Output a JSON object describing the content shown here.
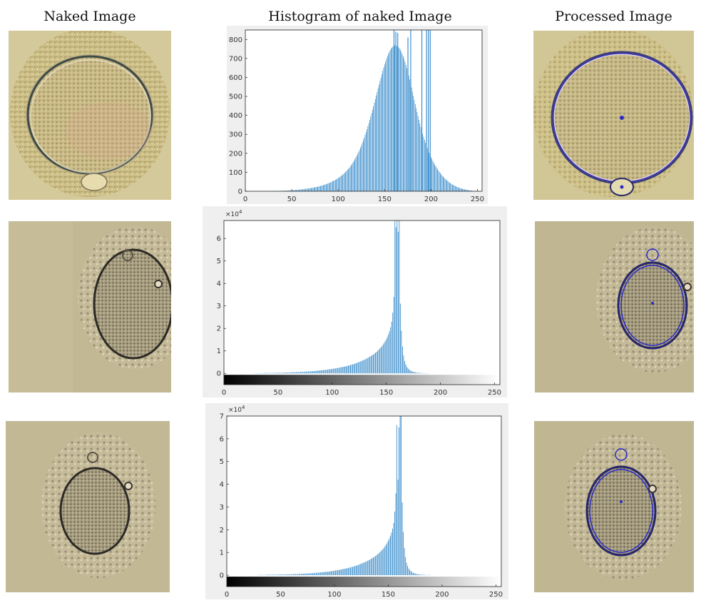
{
  "headers": {
    "naked": "Naked Image",
    "histogram": "Histogram of naked Image",
    "processed": "Processed Image"
  },
  "colors": {
    "bar": "#2f86c8",
    "plot_bg": "#ffffff",
    "panel_bg": "#efefef",
    "overlay": "#2a2ac8"
  },
  "chart_data": [
    {
      "type": "bar",
      "title": "",
      "xlabel": "",
      "ylabel": "",
      "xlim": [
        0,
        255
      ],
      "ylim": [
        0,
        850
      ],
      "exponent_label": "",
      "xticks": [
        "0",
        "50",
        "100",
        "150",
        "200",
        "250"
      ],
      "yticks": [
        "0",
        "100",
        "200",
        "300",
        "400",
        "500",
        "600",
        "700",
        "800"
      ],
      "colorbar": "grayscale 0-255",
      "values": [
        0,
        0,
        0,
        0,
        0,
        0,
        0,
        0,
        0,
        0,
        0,
        0,
        0,
        0,
        0,
        0,
        0,
        0,
        0,
        0,
        0,
        0,
        0,
        0,
        0,
        0,
        0,
        0,
        0,
        1,
        1,
        1,
        1,
        1,
        1,
        1,
        1,
        2,
        2,
        2,
        2,
        2,
        3,
        3,
        3,
        3,
        4,
        4,
        4,
        5,
        5,
        5,
        6,
        6,
        7,
        7,
        8,
        8,
        8,
        9,
        10,
        10,
        11,
        11,
        12,
        13,
        13,
        14,
        15,
        16,
        16,
        17,
        18,
        19,
        20,
        21,
        22,
        23,
        24,
        25,
        27,
        28,
        29,
        31,
        32,
        34,
        36,
        37,
        39,
        41,
        43,
        45,
        47,
        50,
        52,
        55,
        57,
        60,
        63,
        66,
        69,
        73,
        76,
        80,
        84,
        88,
        92,
        97,
        102,
        107,
        112,
        118,
        124,
        130,
        137,
        144,
        152,
        160,
        169,
        178,
        187,
        197,
        207,
        218,
        230,
        242,
        255,
        268,
        282,
        296,
        311,
        327,
        343,
        359,
        376,
        394,
        412,
        430,
        448,
        467,
        486,
        505,
        524,
        543,
        562,
        581,
        599,
        617,
        635,
        652,
        668,
        683,
        698,
        711,
        723,
        734,
        744,
        752,
        758,
        763,
        767,
        769,
        769,
        767,
        764,
        759,
        753,
        745,
        735,
        724,
        712,
        698,
        682,
        666,
        648,
        629,
        610,
        589,
        568,
        547,
        525,
        503,
        481,
        459,
        438,
        417,
        396,
        376,
        357,
        338,
        320,
        303,
        287,
        271,
        256,
        242,
        228,
        215,
        203,
        191,
        180,
        170,
        160,
        150,
        141,
        133,
        125,
        117,
        109,
        102,
        96,
        89,
        83,
        78,
        72,
        67,
        62,
        58,
        54,
        50,
        46,
        42,
        39,
        36,
        33,
        30,
        28,
        25,
        23,
        21,
        19,
        17,
        16,
        14,
        13,
        12,
        10,
        9,
        8,
        7,
        6,
        5,
        4,
        4,
        3,
        2,
        2,
        1,
        1,
        0,
        0,
        0
      ],
      "spikes": [
        [
          160,
          860
        ],
        [
          162,
          840
        ],
        [
          164,
          835
        ],
        [
          175,
          810
        ],
        [
          178,
          900
        ],
        [
          190,
          880
        ],
        [
          195,
          860
        ],
        [
          197,
          900
        ],
        [
          199,
          870
        ]
      ]
    },
    {
      "type": "bar",
      "title": "",
      "xlabel": "",
      "ylabel": "",
      "xlim": [
        0,
        255
      ],
      "ylim": [
        -0.5,
        6.8
      ],
      "exponent_label": "×10",
      "exponent_power": "4",
      "xticks": [
        "0",
        "50",
        "100",
        "150",
        "200",
        "250"
      ],
      "yticks": [
        "0",
        "1",
        "2",
        "3",
        "4",
        "5",
        "6"
      ],
      "colorbar": "grayscale 0-255",
      "values": [
        0,
        0,
        0,
        0,
        0,
        0,
        0,
        0,
        0,
        0,
        0,
        0,
        0,
        0,
        0,
        0,
        0,
        0,
        0,
        0,
        0,
        0,
        0,
        0,
        0,
        0,
        0,
        0,
        0,
        0.01,
        0.01,
        0.01,
        0.01,
        0.01,
        0.01,
        0.01,
        0.01,
        0.02,
        0.02,
        0.02,
        0.02,
        0.02,
        0.02,
        0.02,
        0.02,
        0.02,
        0.02,
        0.02,
        0.03,
        0.03,
        0.03,
        0.03,
        0.03,
        0.03,
        0.03,
        0.03,
        0.04,
        0.04,
        0.04,
        0.04,
        0.04,
        0.04,
        0.05,
        0.05,
        0.05,
        0.05,
        0.05,
        0.06,
        0.06,
        0.06,
        0.06,
        0.07,
        0.07,
        0.07,
        0.07,
        0.08,
        0.08,
        0.08,
        0.09,
        0.09,
        0.09,
        0.1,
        0.1,
        0.1,
        0.11,
        0.11,
        0.12,
        0.12,
        0.13,
        0.13,
        0.14,
        0.14,
        0.15,
        0.15,
        0.16,
        0.16,
        0.17,
        0.18,
        0.18,
        0.19,
        0.2,
        0.21,
        0.21,
        0.22,
        0.23,
        0.24,
        0.25,
        0.26,
        0.27,
        0.28,
        0.29,
        0.3,
        0.31,
        0.32,
        0.33,
        0.35,
        0.36,
        0.37,
        0.39,
        0.4,
        0.42,
        0.43,
        0.45,
        0.47,
        0.49,
        0.51,
        0.53,
        0.55,
        0.57,
        0.59,
        0.61,
        0.64,
        0.66,
        0.69,
        0.72,
        0.75,
        0.78,
        0.81,
        0.84,
        0.88,
        0.92,
        0.96,
        1.0,
        1.05,
        1.1,
        1.15,
        1.21,
        1.28,
        1.35,
        1.43,
        1.52,
        1.62,
        1.74,
        1.88,
        2.05,
        2.3,
        2.7,
        3.4,
        6.8,
        6.5,
        7.0,
        6.3,
        7.0,
        3.1,
        1.9,
        1.2,
        0.8,
        0.55,
        0.4,
        0.3,
        0.23,
        0.18,
        0.14,
        0.11,
        0.09,
        0.07,
        0.06,
        0.05,
        0.04,
        0.03,
        0.03,
        0.02,
        0.02,
        0.02,
        0.01,
        0.01,
        0.01,
        0.01,
        0.01,
        0.01,
        0,
        0,
        0,
        0,
        0,
        0,
        0,
        0,
        0,
        0,
        0,
        0,
        0,
        0,
        0,
        0,
        0,
        0,
        0,
        0,
        0,
        0,
        0,
        0,
        0,
        0,
        0,
        0,
        0,
        0,
        0,
        0,
        0,
        0,
        0,
        0,
        0,
        0,
        0,
        0,
        0,
        0,
        0,
        0,
        0,
        0,
        0,
        0,
        0,
        0,
        0,
        0,
        0,
        0,
        0,
        0,
        0,
        0,
        0,
        0,
        0,
        0,
        0,
        0,
        0,
        0,
        0,
        0,
        0,
        0,
        0,
        0,
        0,
        0
      ],
      "spikes": []
    },
    {
      "type": "bar",
      "title": "",
      "xlabel": "",
      "ylabel": "",
      "xlim": [
        0,
        255
      ],
      "ylim": [
        -0.5,
        7
      ],
      "exponent_label": "×10",
      "exponent_power": "4",
      "xticks": [
        "0",
        "50",
        "100",
        "150",
        "200",
        "250"
      ],
      "yticks": [
        "0",
        "1",
        "2",
        "3",
        "4",
        "5",
        "6",
        "7"
      ],
      "colorbar": "grayscale 0-255",
      "values": [
        0,
        0,
        0,
        0,
        0,
        0,
        0,
        0,
        0,
        0,
        0,
        0,
        0,
        0,
        0,
        0,
        0,
        0,
        0,
        0,
        0,
        0,
        0,
        0,
        0,
        0,
        0,
        0,
        0,
        0.01,
        0.01,
        0.01,
        0.01,
        0.01,
        0.01,
        0.01,
        0.01,
        0.02,
        0.02,
        0.02,
        0.02,
        0.02,
        0.02,
        0.02,
        0.02,
        0.02,
        0.02,
        0.02,
        0.03,
        0.03,
        0.03,
        0.03,
        0.03,
        0.03,
        0.03,
        0.03,
        0.04,
        0.04,
        0.04,
        0.04,
        0.04,
        0.04,
        0.05,
        0.05,
        0.05,
        0.05,
        0.05,
        0.06,
        0.06,
        0.06,
        0.06,
        0.07,
        0.07,
        0.07,
        0.07,
        0.08,
        0.08,
        0.08,
        0.09,
        0.09,
        0.09,
        0.1,
        0.1,
        0.1,
        0.11,
        0.11,
        0.12,
        0.12,
        0.13,
        0.13,
        0.14,
        0.14,
        0.15,
        0.15,
        0.16,
        0.16,
        0.17,
        0.18,
        0.18,
        0.19,
        0.2,
        0.21,
        0.21,
        0.22,
        0.23,
        0.24,
        0.25,
        0.26,
        0.27,
        0.28,
        0.29,
        0.3,
        0.31,
        0.32,
        0.33,
        0.35,
        0.36,
        0.37,
        0.39,
        0.4,
        0.42,
        0.43,
        0.45,
        0.47,
        0.49,
        0.51,
        0.53,
        0.55,
        0.57,
        0.59,
        0.61,
        0.64,
        0.66,
        0.69,
        0.72,
        0.75,
        0.78,
        0.81,
        0.84,
        0.88,
        0.92,
        0.96,
        1.0,
        1.05,
        1.1,
        1.15,
        1.21,
        1.28,
        1.35,
        1.43,
        1.52,
        1.62,
        1.74,
        1.88,
        2.05,
        2.3,
        2.8,
        3.6,
        6.6,
        4.2,
        6.5,
        7.0,
        7.0,
        3.2,
        1.9,
        1.2,
        0.8,
        0.55,
        0.4,
        0.3,
        0.23,
        0.18,
        0.14,
        0.11,
        0.09,
        0.07,
        0.06,
        0.05,
        0.04,
        0.03,
        0.03,
        0.02,
        0.02,
        0.02,
        0.01,
        0.01,
        0.01,
        0.01,
        0.01,
        0.01,
        0,
        0,
        0,
        0,
        0,
        0,
        0,
        0,
        0,
        0,
        0,
        0,
        0,
        0,
        0,
        0,
        0,
        0,
        0,
        0,
        0,
        0,
        0,
        0,
        0,
        0,
        0,
        0,
        0,
        0,
        0,
        0,
        0,
        0,
        0,
        0,
        0,
        0,
        0,
        0,
        0,
        0,
        0,
        0,
        0,
        0,
        0,
        0,
        0,
        0,
        0,
        0,
        0,
        0,
        0,
        0,
        0,
        0,
        0,
        0,
        0,
        0,
        0,
        0,
        0,
        0,
        0,
        0,
        0,
        0,
        0,
        0,
        0,
        0
      ],
      "spikes": []
    }
  ]
}
